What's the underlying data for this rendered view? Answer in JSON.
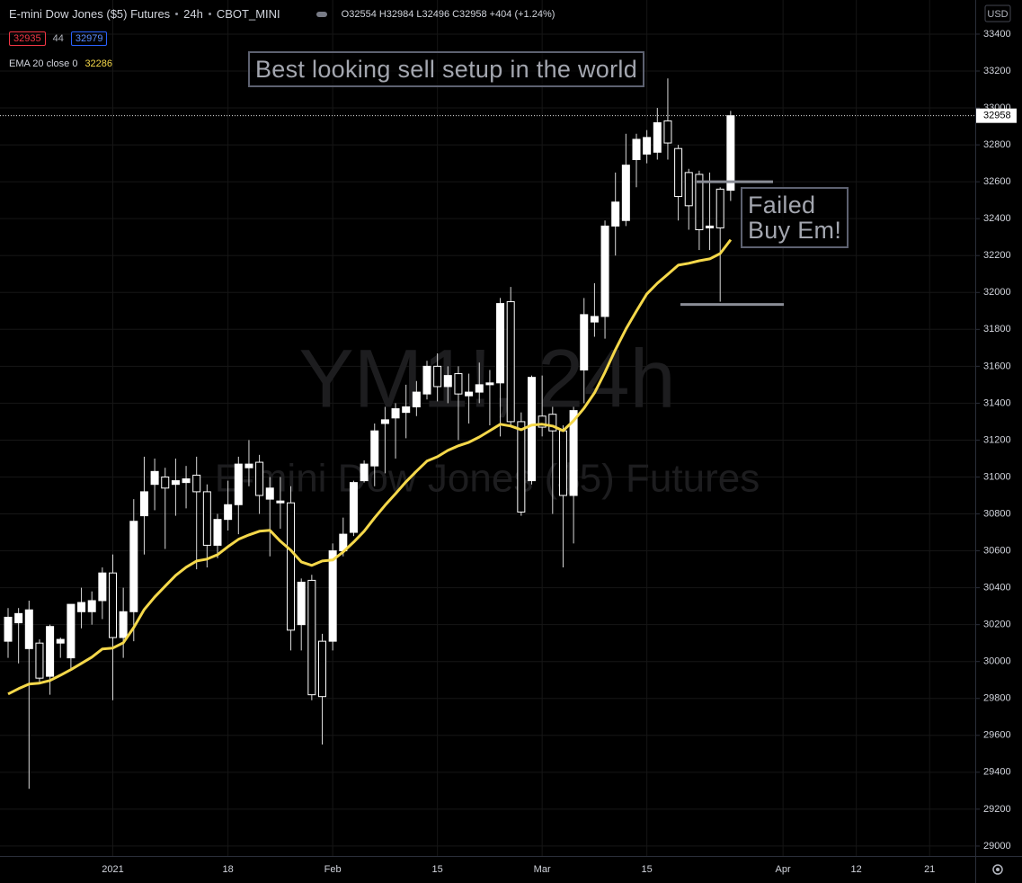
{
  "chart_data": {
    "type": "candlestick",
    "title": "E-mini Dow Jones ($5) Futures",
    "interval": "24h",
    "exchange": "CBOT_MINI",
    "ohlc_labels": [
      "O32554",
      "H32984",
      "L32496",
      "C32958",
      "+404 (+1.24%)"
    ],
    "bid": 32935,
    "spread": 44,
    "ask": 32979,
    "currency": "USD",
    "watermark": "YM1!, 24h",
    "annotations": [
      "Best looking sell setup in the world",
      "Failed",
      "Buy Em!"
    ],
    "categories": [
      null,
      null,
      null,
      null,
      null,
      null,
      null,
      null,
      null,
      null,
      "2021",
      null,
      null,
      null,
      null,
      null,
      null,
      null,
      null,
      null,
      null,
      "18",
      null,
      null,
      null,
      null,
      null,
      null,
      null,
      null,
      null,
      "Feb",
      null,
      null,
      null,
      null,
      null,
      null,
      null,
      null,
      null,
      "15",
      null,
      null,
      null,
      null,
      null,
      null,
      null,
      null,
      null,
      "Mar",
      null,
      null,
      null,
      null,
      null,
      null,
      null,
      null,
      null,
      "15",
      null,
      null,
      null,
      null,
      null,
      null,
      null,
      null,
      null,
      null,
      null,
      null,
      "Apr",
      null,
      null,
      null,
      null,
      null,
      null,
      "12",
      null,
      null,
      null,
      null,
      null,
      null,
      "21",
      null,
      null,
      null,
      null
    ],
    "open": [
      30110,
      30210,
      30070,
      30100,
      29920,
      30100,
      30020,
      30270,
      30270,
      30330,
      30480,
      30130,
      30270,
      30790,
      30960,
      31000,
      30960,
      30970,
      31010,
      30920,
      30630,
      30770,
      30850,
      31050,
      31080,
      30880,
      30860,
      30860,
      30200,
      30440,
      30110,
      30110,
      30600,
      30700,
      30980,
      31060,
      31290,
      31320,
      31350,
      31380,
      31450,
      31600,
      31490,
      31560,
      31440,
      31460,
      31500,
      31510,
      31950,
      31300,
      30980,
      31330,
      31340,
      31250,
      30900,
      31580,
      31840,
      31870,
      32360,
      32390,
      32720,
      32750,
      32760,
      32930,
      32780,
      32650,
      32640,
      32350,
      32560,
      32554,
      null,
      null,
      null,
      null,
      null,
      null,
      null,
      null,
      null,
      null,
      null,
      null,
      null,
      null,
      null,
      null,
      null,
      null,
      null,
      null,
      null,
      null,
      null
    ],
    "high": [
      30290,
      30290,
      30330,
      30120,
      30200,
      30130,
      30310,
      30400,
      30380,
      30510,
      30580,
      30400,
      30880,
      31110,
      31100,
      31050,
      31100,
      31060,
      31110,
      30960,
      30800,
      30980,
      31110,
      31200,
      31120,
      31000,
      31000,
      30950,
      30450,
      30470,
      30150,
      30640,
      30780,
      30980,
      31090,
      31290,
      31380,
      31400,
      31500,
      31520,
      31630,
      31670,
      31600,
      31600,
      31560,
      31620,
      31580,
      31970,
      32030,
      31350,
      31550,
      31550,
      31380,
      31280,
      31380,
      31970,
      32050,
      32390,
      32650,
      32860,
      32860,
      32880,
      33000,
      33160,
      32800,
      32670,
      32660,
      32650,
      32570,
      32984,
      null,
      null,
      null,
      null,
      null,
      null,
      null,
      null,
      null,
      null,
      null,
      null,
      null,
      null,
      null,
      null,
      null,
      null,
      null,
      null,
      null,
      null,
      null
    ],
    "low": [
      30020,
      29990,
      29310,
      29880,
      29820,
      30020,
      29960,
      30180,
      30200,
      30230,
      29790,
      30020,
      30110,
      30580,
      30820,
      30610,
      30790,
      30830,
      30500,
      30510,
      30560,
      30710,
      30690,
      30950,
      30800,
      30570,
      30720,
      30060,
      30060,
      29790,
      29550,
      30060,
      30570,
      30680,
      30970,
      30950,
      31020,
      31100,
      31210,
      31330,
      31420,
      31410,
      31400,
      31200,
      31290,
      31400,
      31280,
      31220,
      31270,
      30790,
      30960,
      31220,
      30800,
      30510,
      30640,
      31400,
      31760,
      31750,
      32200,
      32360,
      32570,
      32700,
      32720,
      32720,
      32390,
      32340,
      32230,
      32230,
      31950,
      32496,
      null,
      null,
      null,
      null,
      null,
      null,
      null,
      null,
      null,
      null,
      null,
      null,
      null,
      null,
      null,
      null,
      null,
      null,
      null,
      null,
      null,
      null,
      null
    ],
    "close": [
      30240,
      30260,
      30280,
      29910,
      30190,
      30120,
      30310,
      30320,
      30330,
      30480,
      30130,
      30270,
      30760,
      30920,
      31030,
      30940,
      30980,
      30990,
      30920,
      30630,
      30770,
      30850,
      31070,
      31070,
      30900,
      30940,
      30870,
      30170,
      30430,
      29820,
      29810,
      30600,
      30690,
      30970,
      31070,
      31250,
      31310,
      31370,
      31380,
      31460,
      31600,
      31490,
      31550,
      31450,
      31460,
      31500,
      31510,
      31940,
      31300,
      30810,
      31540,
      31270,
      31250,
      30900,
      31360,
      31880,
      31870,
      32360,
      32490,
      32690,
      32830,
      32840,
      32920,
      32810,
      32520,
      32470,
      32340,
      32360,
      32350,
      32958,
      null,
      null,
      null,
      null,
      null,
      null,
      null,
      null,
      null,
      null,
      null,
      null,
      null,
      null,
      null,
      null,
      null,
      null,
      null,
      null,
      null,
      null,
      null
    ],
    "up_color": "#ffffff",
    "down_color": "#000000",
    "ema": {
      "name": "EMA 20 close 0",
      "color": "#f5d84a",
      "values": [
        29824,
        29853,
        29878,
        29883,
        29897,
        29926,
        29956,
        29990,
        30024,
        30068,
        30073,
        30102,
        30184,
        30282,
        30350,
        30409,
        30467,
        30511,
        30545,
        30555,
        30579,
        30623,
        30662,
        30686,
        30706,
        30711,
        30652,
        30603,
        30540,
        30521,
        30545,
        30550,
        30594,
        30647,
        30706,
        30779,
        30847,
        30910,
        30974,
        31032,
        31086,
        31110,
        31144,
        31169,
        31188,
        31217,
        31251,
        31286,
        31276,
        31256,
        31281,
        31286,
        31276,
        31251,
        31305,
        31373,
        31456,
        31568,
        31690,
        31802,
        31899,
        31992,
        32050,
        32099,
        32148,
        32158,
        32172,
        32182,
        32211,
        32286,
        null,
        null,
        null,
        null,
        null,
        null,
        null,
        null,
        null,
        null,
        null,
        null,
        null,
        null,
        null,
        null,
        null,
        null,
        null,
        null,
        null,
        null,
        null
      ]
    },
    "hlines": [
      32600,
      31935
    ],
    "ylim": [
      28946,
      33585
    ],
    "yticks": [
      29000,
      29200,
      29400,
      29600,
      29800,
      30000,
      30200,
      30400,
      30600,
      30800,
      31000,
      31200,
      31400,
      31600,
      31800,
      32000,
      32200,
      32400,
      32600,
      32800,
      33000,
      33200,
      33400
    ],
    "grid": true
  }
}
